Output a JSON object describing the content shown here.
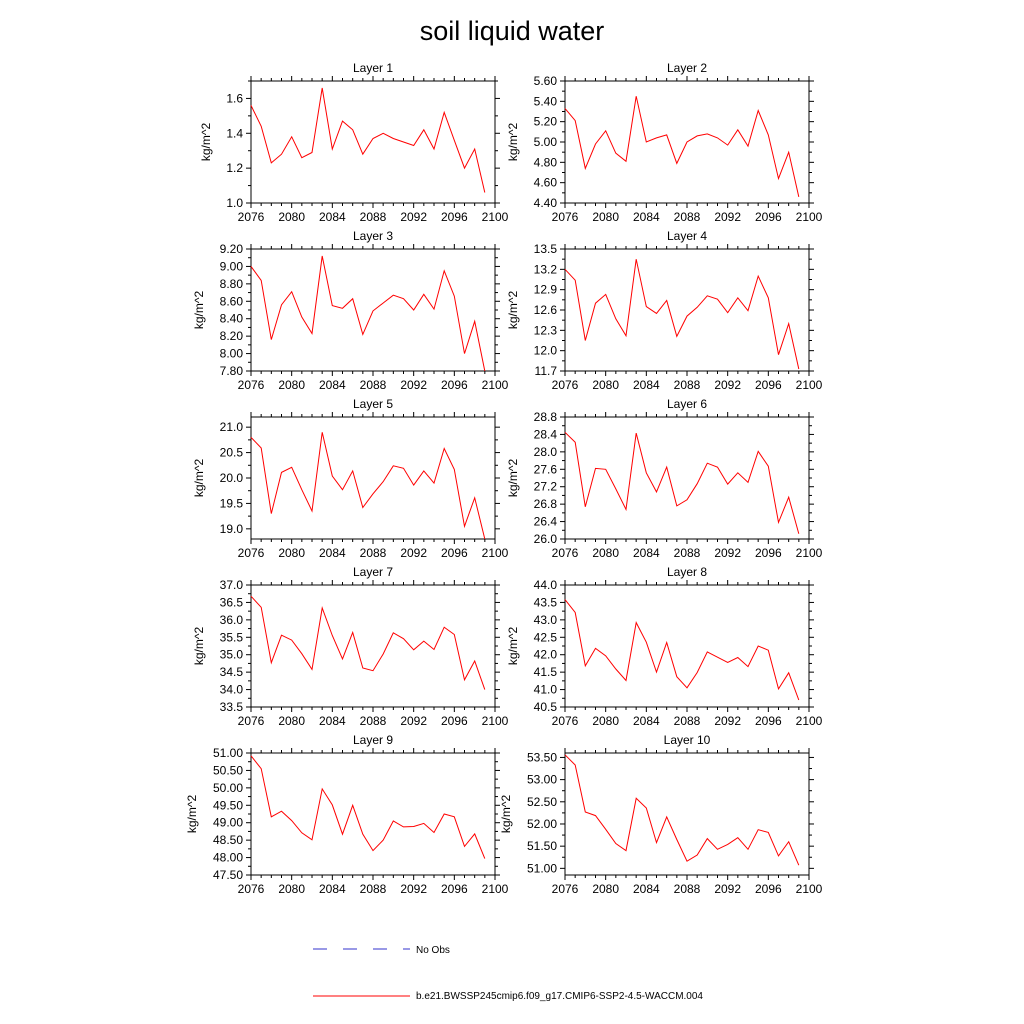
{
  "figure_title": "soil liquid water",
  "legend": [
    {
      "label": "No Obs",
      "color": "#3333cc",
      "dash": "dashed"
    },
    {
      "label": "b.e21.BWSSP245cmip6.f09_g17.CMIP6-SSP2-4.5-WACCM.004",
      "color": "#ff0000",
      "dash": "solid"
    }
  ],
  "chart_data": [
    {
      "type": "line",
      "title": "Layer 1",
      "ylabel": "kg/m^2",
      "xlim": [
        2076,
        2100
      ],
      "x_ticks": [
        "2076",
        "2080",
        "2084",
        "2088",
        "2092",
        "2096",
        "2100"
      ],
      "ylim": [
        1.0,
        1.7
      ],
      "y_ticks": [
        "1.0",
        "1.2",
        "1.4",
        "1.6"
      ],
      "x": [
        2076,
        2077,
        2078,
        2079,
        2080,
        2081,
        2082,
        2083,
        2084,
        2085,
        2086,
        2087,
        2088,
        2089,
        2090,
        2091,
        2092,
        2093,
        2094,
        2095,
        2096,
        2097,
        2098,
        2099
      ],
      "series": [
        {
          "color": "#ff0000",
          "values": [
            1.56,
            1.44,
            1.23,
            1.28,
            1.38,
            1.26,
            1.29,
            1.66,
            1.31,
            1.47,
            1.42,
            1.28,
            1.37,
            1.4,
            1.37,
            1.35,
            1.33,
            1.42,
            1.31,
            1.52,
            1.36,
            1.2,
            1.31,
            1.06
          ]
        }
      ]
    },
    {
      "type": "line",
      "title": "Layer 2",
      "ylabel": "kg/m^2",
      "xlim": [
        2076,
        2100
      ],
      "x_ticks": [
        "2076",
        "2080",
        "2084",
        "2088",
        "2092",
        "2096",
        "2100"
      ],
      "ylim": [
        4.4,
        5.6
      ],
      "y_ticks": [
        "4.40",
        "4.60",
        "4.80",
        "5.00",
        "5.20",
        "5.40",
        "5.60"
      ],
      "x": [
        2076,
        2077,
        2078,
        2079,
        2080,
        2081,
        2082,
        2083,
        2084,
        2085,
        2086,
        2087,
        2088,
        2089,
        2090,
        2091,
        2092,
        2093,
        2094,
        2095,
        2096,
        2097,
        2098,
        2099
      ],
      "series": [
        {
          "color": "#ff0000",
          "values": [
            5.33,
            5.21,
            4.74,
            4.98,
            5.11,
            4.89,
            4.81,
            5.45,
            5.0,
            5.04,
            5.07,
            4.79,
            5.0,
            5.06,
            5.08,
            5.04,
            4.97,
            5.12,
            4.96,
            5.31,
            5.07,
            4.64,
            4.9,
            4.46
          ]
        }
      ]
    },
    {
      "type": "line",
      "title": "Layer 3",
      "ylabel": "kg/m^2",
      "xlim": [
        2076,
        2100
      ],
      "x_ticks": [
        "2076",
        "2080",
        "2084",
        "2088",
        "2092",
        "2096",
        "2100"
      ],
      "ylim": [
        7.8,
        9.2
      ],
      "y_ticks": [
        "7.80",
        "8.00",
        "8.20",
        "8.40",
        "8.60",
        "8.80",
        "9.00",
        "9.20"
      ],
      "x": [
        2076,
        2077,
        2078,
        2079,
        2080,
        2081,
        2082,
        2083,
        2084,
        2085,
        2086,
        2087,
        2088,
        2089,
        2090,
        2091,
        2092,
        2093,
        2094,
        2095,
        2096,
        2097,
        2098,
        2099
      ],
      "series": [
        {
          "color": "#ff0000",
          "values": [
            9.0,
            8.84,
            8.16,
            8.56,
            8.71,
            8.42,
            8.23,
            9.12,
            8.55,
            8.52,
            8.63,
            8.22,
            8.49,
            8.58,
            8.67,
            8.63,
            8.5,
            8.68,
            8.51,
            8.95,
            8.66,
            8.0,
            8.37,
            7.8
          ]
        }
      ]
    },
    {
      "type": "line",
      "title": "Layer 4",
      "ylabel": "kg/m^2",
      "xlim": [
        2076,
        2100
      ],
      "x_ticks": [
        "2076",
        "2080",
        "2084",
        "2088",
        "2092",
        "2096",
        "2100"
      ],
      "ylim": [
        11.7,
        13.5
      ],
      "y_ticks": [
        "11.7",
        "12.0",
        "12.3",
        "12.6",
        "12.9",
        "13.2",
        "13.5"
      ],
      "x": [
        2076,
        2077,
        2078,
        2079,
        2080,
        2081,
        2082,
        2083,
        2084,
        2085,
        2086,
        2087,
        2088,
        2089,
        2090,
        2091,
        2092,
        2093,
        2094,
        2095,
        2096,
        2097,
        2098,
        2099
      ],
      "series": [
        {
          "color": "#ff0000",
          "values": [
            13.2,
            13.04,
            12.15,
            12.7,
            12.83,
            12.47,
            12.22,
            13.35,
            12.65,
            12.55,
            12.74,
            12.21,
            12.51,
            12.64,
            12.81,
            12.76,
            12.56,
            12.78,
            12.59,
            13.1,
            12.78,
            11.94,
            12.4,
            11.73
          ]
        }
      ]
    },
    {
      "type": "line",
      "title": "Layer 5",
      "ylabel": "kg/m^2",
      "xlim": [
        2076,
        2100
      ],
      "x_ticks": [
        "2076",
        "2080",
        "2084",
        "2088",
        "2092",
        "2096",
        "2100"
      ],
      "ylim": [
        18.8,
        21.2
      ],
      "y_ticks": [
        "19.0",
        "19.5",
        "20.0",
        "20.5",
        "21.0"
      ],
      "x": [
        2076,
        2077,
        2078,
        2079,
        2080,
        2081,
        2082,
        2083,
        2084,
        2085,
        2086,
        2087,
        2088,
        2089,
        2090,
        2091,
        2092,
        2093,
        2094,
        2095,
        2096,
        2097,
        2098,
        2099
      ],
      "series": [
        {
          "color": "#ff0000",
          "values": [
            20.8,
            20.59,
            19.3,
            20.11,
            20.21,
            19.77,
            19.35,
            20.9,
            20.04,
            19.77,
            20.14,
            19.42,
            19.69,
            19.93,
            20.24,
            20.19,
            19.86,
            20.14,
            19.9,
            20.58,
            20.17,
            19.05,
            19.61,
            18.8
          ]
        }
      ]
    },
    {
      "type": "line",
      "title": "Layer 6",
      "ylabel": "kg/m^2",
      "xlim": [
        2076,
        2100
      ],
      "x_ticks": [
        "2076",
        "2080",
        "2084",
        "2088",
        "2092",
        "2096",
        "2100"
      ],
      "ylim": [
        26.0,
        28.8
      ],
      "y_ticks": [
        "26.0",
        "26.4",
        "26.8",
        "27.2",
        "27.6",
        "28.0",
        "28.4",
        "28.8"
      ],
      "x": [
        2076,
        2077,
        2078,
        2079,
        2080,
        2081,
        2082,
        2083,
        2084,
        2085,
        2086,
        2087,
        2088,
        2089,
        2090,
        2091,
        2092,
        2093,
        2094,
        2095,
        2096,
        2097,
        2098,
        2099
      ],
      "series": [
        {
          "color": "#ff0000",
          "values": [
            28.45,
            28.22,
            26.74,
            27.62,
            27.6,
            27.15,
            26.68,
            28.43,
            27.52,
            27.08,
            27.65,
            26.76,
            26.9,
            27.27,
            27.74,
            27.65,
            27.26,
            27.52,
            27.3,
            28.01,
            27.67,
            26.38,
            26.96,
            26.12
          ]
        }
      ]
    },
    {
      "type": "line",
      "title": "Layer 7",
      "ylabel": "kg/m^2",
      "xlim": [
        2076,
        2100
      ],
      "x_ticks": [
        "2076",
        "2080",
        "2084",
        "2088",
        "2092",
        "2096",
        "2100"
      ],
      "ylim": [
        33.5,
        37.0
      ],
      "y_ticks": [
        "33.5",
        "34.0",
        "34.5",
        "35.0",
        "35.5",
        "36.0",
        "36.5",
        "37.0"
      ],
      "x": [
        2076,
        2077,
        2078,
        2079,
        2080,
        2081,
        2082,
        2083,
        2084,
        2085,
        2086,
        2087,
        2088,
        2089,
        2090,
        2091,
        2092,
        2093,
        2094,
        2095,
        2096,
        2097,
        2098,
        2099
      ],
      "series": [
        {
          "color": "#ff0000",
          "values": [
            36.68,
            36.36,
            34.77,
            35.56,
            35.42,
            35.03,
            34.58,
            36.34,
            35.55,
            34.88,
            35.64,
            34.62,
            34.54,
            35.02,
            35.63,
            35.46,
            35.14,
            35.39,
            35.15,
            35.79,
            35.58,
            34.28,
            34.82,
            34.0
          ]
        }
      ]
    },
    {
      "type": "line",
      "title": "Layer 8",
      "ylabel": "kg/m^2",
      "xlim": [
        2076,
        2100
      ],
      "x_ticks": [
        "2076",
        "2080",
        "2084",
        "2088",
        "2092",
        "2096",
        "2100"
      ],
      "ylim": [
        40.5,
        44.0
      ],
      "y_ticks": [
        "40.5",
        "41.0",
        "41.5",
        "42.0",
        "42.5",
        "43.0",
        "43.5",
        "44.0"
      ],
      "x": [
        2076,
        2077,
        2078,
        2079,
        2080,
        2081,
        2082,
        2083,
        2084,
        2085,
        2086,
        2087,
        2088,
        2089,
        2090,
        2091,
        2092,
        2093,
        2094,
        2095,
        2096,
        2097,
        2098,
        2099
      ],
      "series": [
        {
          "color": "#ff0000",
          "values": [
            43.58,
            43.21,
            41.68,
            42.18,
            41.97,
            41.59,
            41.26,
            42.92,
            42.36,
            41.5,
            42.35,
            41.37,
            41.05,
            41.49,
            42.08,
            41.93,
            41.78,
            41.92,
            41.66,
            42.25,
            42.13,
            41.02,
            41.48,
            40.7
          ]
        }
      ]
    },
    {
      "type": "line",
      "title": "Layer 9",
      "ylabel": "kg/m^2",
      "xlim": [
        2076,
        2100
      ],
      "x_ticks": [
        "2076",
        "2080",
        "2084",
        "2088",
        "2092",
        "2096",
        "2100"
      ],
      "ylim": [
        47.5,
        51.0
      ],
      "y_ticks": [
        "47.50",
        "48.00",
        "48.50",
        "49.00",
        "49.50",
        "50.00",
        "50.50",
        "51.00"
      ],
      "x": [
        2076,
        2077,
        2078,
        2079,
        2080,
        2081,
        2082,
        2083,
        2084,
        2085,
        2086,
        2087,
        2088,
        2089,
        2090,
        2091,
        2092,
        2093,
        2094,
        2095,
        2096,
        2097,
        2098,
        2099
      ],
      "series": [
        {
          "color": "#ff0000",
          "values": [
            50.92,
            50.55,
            49.17,
            49.33,
            49.06,
            48.71,
            48.51,
            49.97,
            49.51,
            48.67,
            49.5,
            48.67,
            48.2,
            48.5,
            49.05,
            48.88,
            48.89,
            48.98,
            48.72,
            49.25,
            49.17,
            48.32,
            48.68,
            47.97
          ]
        }
      ]
    },
    {
      "type": "line",
      "title": "Layer 10",
      "ylabel": "kg/m^2",
      "xlim": [
        2076,
        2100
      ],
      "x_ticks": [
        "2076",
        "2080",
        "2084",
        "2088",
        "2092",
        "2096",
        "2100"
      ],
      "ylim": [
        50.85,
        53.6
      ],
      "y_ticks": [
        "51.00",
        "51.50",
        "52.00",
        "52.50",
        "53.00",
        "53.50"
      ],
      "x": [
        2076,
        2077,
        2078,
        2079,
        2080,
        2081,
        2082,
        2083,
        2084,
        2085,
        2086,
        2087,
        2088,
        2089,
        2090,
        2091,
        2092,
        2093,
        2094,
        2095,
        2096,
        2097,
        2098,
        2099
      ],
      "series": [
        {
          "color": "#ff0000",
          "values": [
            53.56,
            53.33,
            52.27,
            52.19,
            51.88,
            51.56,
            51.4,
            52.58,
            52.36,
            51.58,
            52.16,
            51.65,
            51.16,
            51.3,
            51.67,
            51.43,
            51.54,
            51.69,
            51.43,
            51.87,
            51.81,
            51.28,
            51.6,
            51.07
          ]
        }
      ]
    }
  ]
}
